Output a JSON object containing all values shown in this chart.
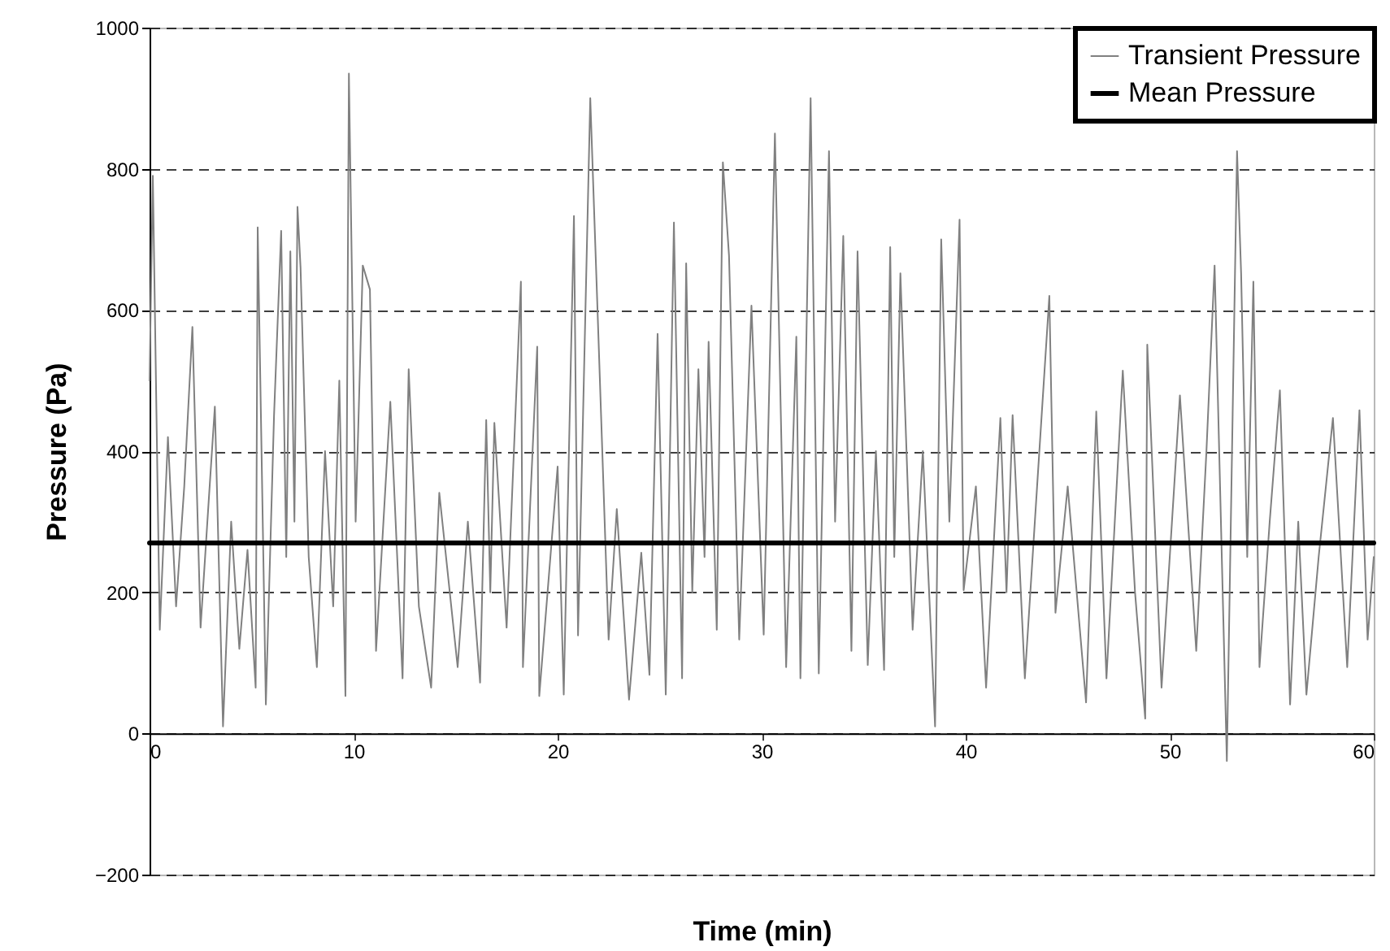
{
  "chart_data": {
    "type": "line",
    "xlabel": "Time (min)",
    "ylabel": "Pressure (Pa)",
    "xlim": [
      0,
      60
    ],
    "xticks": [
      0,
      10,
      20,
      30,
      40,
      50,
      60
    ],
    "ylim": [
      -200,
      1000
    ],
    "yticks": [
      -200,
      0,
      200,
      400,
      600,
      800,
      1000
    ],
    "grid": "y",
    "legend": "top right",
    "marker": "none",
    "series": [
      {
        "name": "Transient Pressure",
        "color": "#808080",
        "x": [
          0,
          0.16,
          0.5,
          0.9,
          1.3,
          1.7,
          2.1,
          2.5,
          2.9,
          3.2,
          3.6,
          4.0,
          4.4,
          4.8,
          5.2,
          5.3,
          5.7,
          6.1,
          6.45,
          6.7,
          6.9,
          7.1,
          7.25,
          7.4,
          7.8,
          8.2,
          8.6,
          9.0,
          9.3,
          9.6,
          9.77,
          10.1,
          10.45,
          10.8,
          11.1,
          11.8,
          12.4,
          12.7,
          13.2,
          13.8,
          14.2,
          15.1,
          15.6,
          16.2,
          16.5,
          16.7,
          16.9,
          17.5,
          18.2,
          18.3,
          19.0,
          19.1,
          20.0,
          20.3,
          20.8,
          21.0,
          21.6,
          22.0,
          22.5,
          22.9,
          23.5,
          24.1,
          24.5,
          24.9,
          25.3,
          25.7,
          26.1,
          26.3,
          26.6,
          26.9,
          27.2,
          27.4,
          27.8,
          28.1,
          28.4,
          28.9,
          29.5,
          30.1,
          30.65,
          31.2,
          31.7,
          31.9,
          32.4,
          32.8,
          33.3,
          33.6,
          34.0,
          34.4,
          34.7,
          35.2,
          35.6,
          36.0,
          36.3,
          36.5,
          36.8,
          37.4,
          37.9,
          38.5,
          38.8,
          39.2,
          39.7,
          39.9,
          40.5,
          41.0,
          41.7,
          42.0,
          42.3,
          42.9,
          43.5,
          44.1,
          44.4,
          45.0,
          45.9,
          46.4,
          46.9,
          47.7,
          48.3,
          48.8,
          48.9,
          49.6,
          50.5,
          51.3,
          51.8,
          52.2,
          52.8,
          53.3,
          53.5,
          53.8,
          54.1,
          54.4,
          54.9,
          55.4,
          55.9,
          56.3,
          56.7,
          57.3,
          58.0,
          58.7,
          59.3,
          59.7,
          60
        ],
        "values": [
          500,
          790,
          147,
          420,
          180,
          350,
          576,
          150,
          330,
          463,
          10,
          300,
          120,
          260,
          65,
          717,
          41,
          450,
          712,
          250,
          683,
          300,
          746,
          660,
          250,
          94,
          400,
          180,
          500,
          53,
          935,
          300,
          663,
          629,
          117,
          470,
          78,
          516,
          180,
          65,
          341,
          94,
          300,
          72,
          444,
          200,
          440,
          150,
          640,
          94,
          548,
          53,
          378,
          55,
          733,
          139,
          900,
          562,
          133,
          318,
          48,
          256,
          83,
          566,
          55,
          724,
          78,
          666,
          200,
          516,
          250,
          555,
          147,
          809,
          677,
          133,
          606,
          140,
          850,
          94,
          562,
          78,
          900,
          85,
          825,
          300,
          705,
          117,
          683,
          97,
          400,
          90,
          689,
          250,
          652,
          147,
          400,
          10,
          700,
          300,
          728,
          203,
          350,
          65,
          447,
          200,
          451,
          78,
          350,
          620,
          171,
          350,
          44,
          456,
          78,
          514,
          200,
          21,
          551,
          65,
          479,
          117,
          400,
          663,
          -39,
          825,
          652,
          250,
          640,
          94,
          300,
          486,
          41,
          300,
          55,
          250,
          447,
          94,
          458,
          133,
          250
        ]
      },
      {
        "name": "Mean Pressure",
        "color": "#000000",
        "x": [
          0,
          60
        ],
        "values": [
          270,
          270
        ]
      }
    ]
  }
}
